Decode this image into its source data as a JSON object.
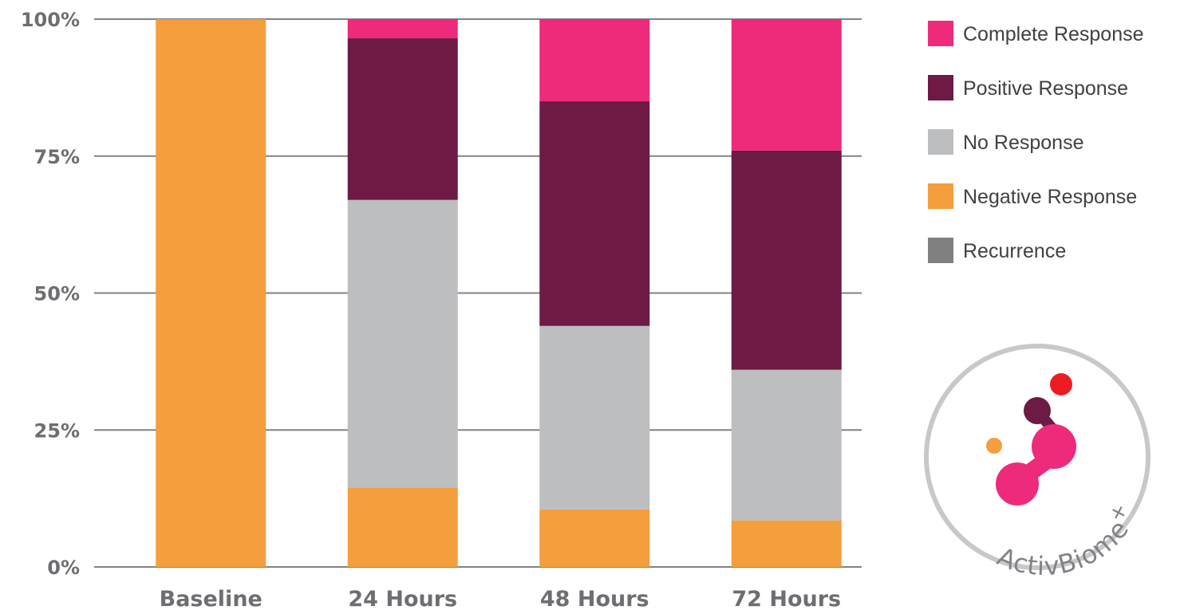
{
  "chart_data": {
    "type": "bar",
    "stacked": true,
    "categories": [
      "Baseline",
      "24 Hours",
      "48 Hours",
      "72 Hours"
    ],
    "series": [
      {
        "name": "Negative Response",
        "color": "#f59e3d",
        "values": [
          100,
          14.5,
          10.5,
          8.5
        ]
      },
      {
        "name": "No Response",
        "color": "#bcbec0",
        "values": [
          0,
          52.5,
          33.5,
          27.5
        ]
      },
      {
        "name": "Positive Response",
        "color": "#6d1a45",
        "values": [
          0,
          29.5,
          41,
          40
        ]
      },
      {
        "name": "Complete Response",
        "color": "#ee2a7b",
        "values": [
          0,
          3.5,
          15,
          24
        ]
      },
      {
        "name": "Recurrence",
        "color": "#808080",
        "values": [
          0,
          0,
          0,
          0
        ]
      }
    ],
    "legend_order": [
      "Complete Response",
      "Positive Response",
      "No Response",
      "Negative Response",
      "Recurrence"
    ],
    "yticks": [
      "0%",
      "25%",
      "50%",
      "75%",
      "100%"
    ],
    "ylim": [
      0,
      100
    ],
    "legend_position": "right",
    "grid": true
  },
  "logo": {
    "text": "ActivBiome",
    "superscript": "+",
    "colors": {
      "ring": "#c7c8ca",
      "dark": "#6d1a45",
      "pink": "#ee2a7b",
      "red": "#ed1c24",
      "orange": "#f59e3d"
    }
  }
}
